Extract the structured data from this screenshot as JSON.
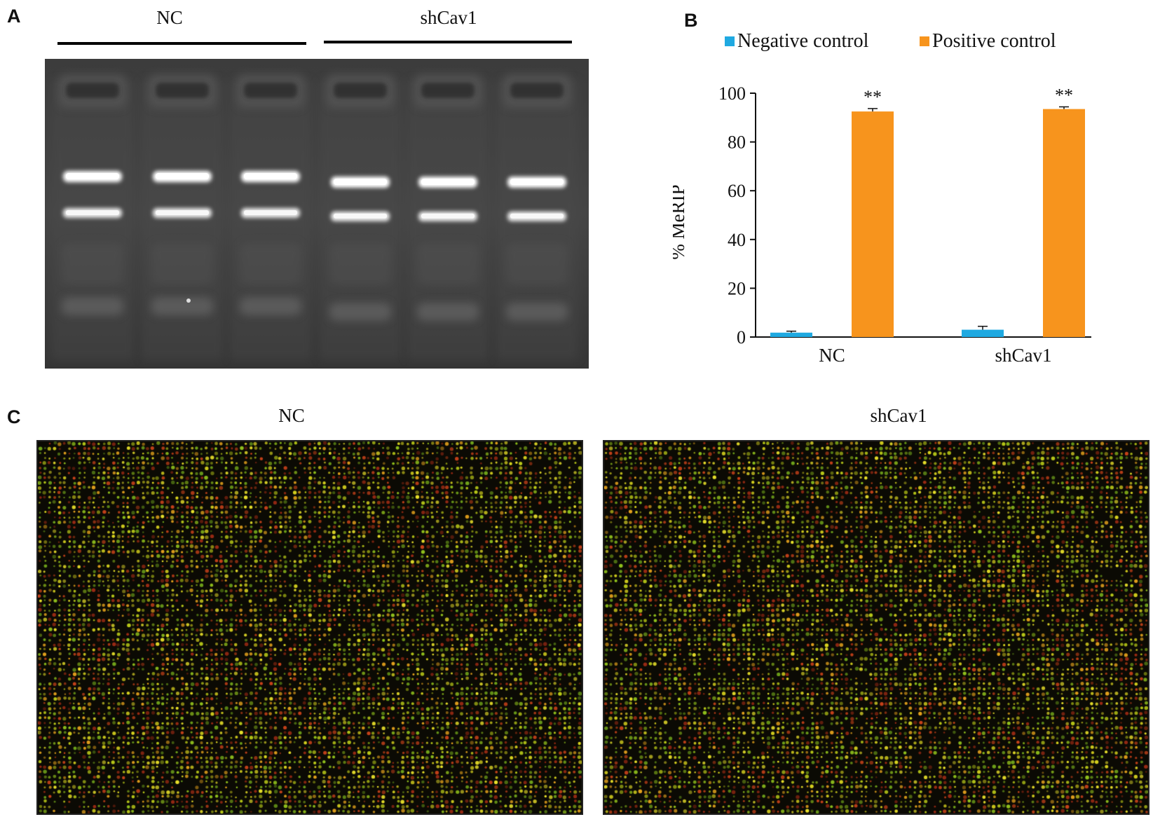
{
  "panels": {
    "a": {
      "letter": "A",
      "groups": [
        "NC",
        "shCav1"
      ]
    },
    "b": {
      "letter": "B"
    },
    "c": {
      "letter": "C",
      "groups": [
        "NC",
        "shCav1"
      ]
    }
  },
  "chart_data": {
    "type": "bar",
    "categories": [
      "NC",
      "shCav1"
    ],
    "series": [
      {
        "name": "Negative control",
        "values": [
          1.8,
          3.0
        ],
        "error": [
          0.6,
          1.4
        ],
        "color": "#1fa9e1"
      },
      {
        "name": "Positive control",
        "values": [
          92.5,
          93.5
        ],
        "error": [
          1.2,
          0.9
        ],
        "color": "#f7941d"
      }
    ],
    "annotations": [
      "**",
      "**"
    ],
    "ylabel": "% MeRIP",
    "yticks": [
      0,
      20,
      40,
      60,
      80,
      100
    ],
    "ylim": [
      0,
      100
    ],
    "legend_position": "top"
  }
}
